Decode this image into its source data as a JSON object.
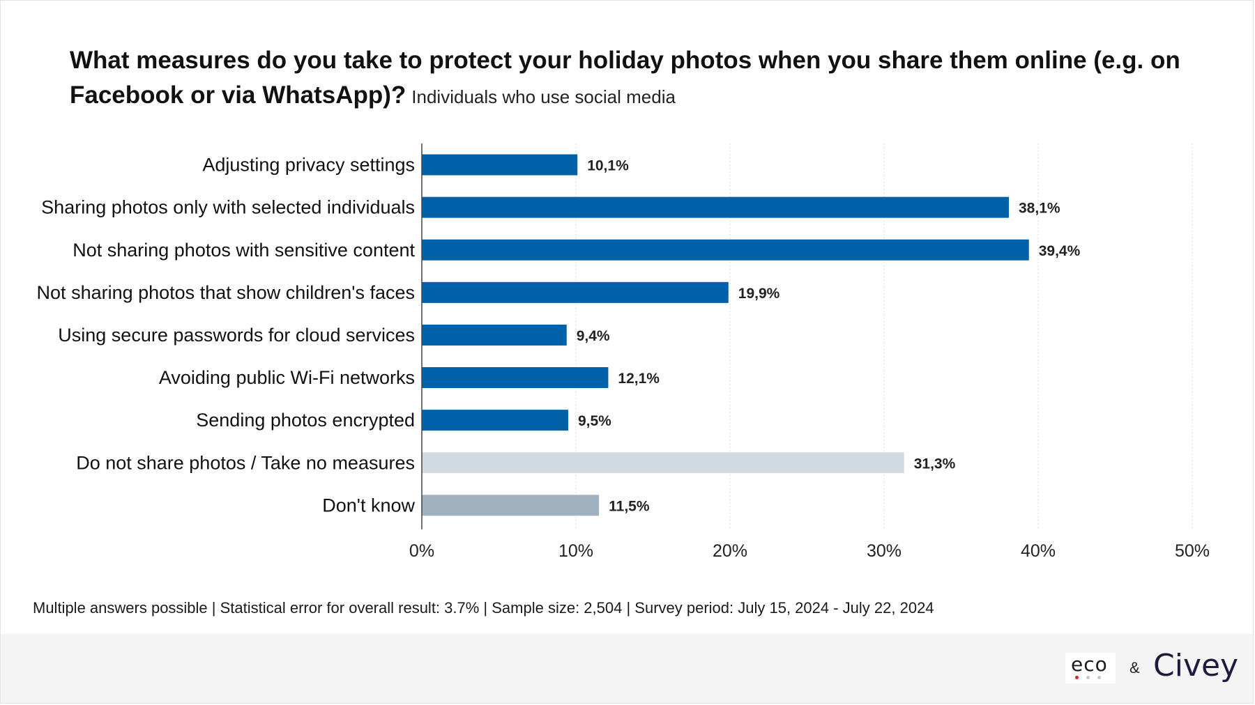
{
  "title": "What measures do you take to protect your holiday photos when you share them online (e.g. on Facebook or via WhatsApp)?",
  "subtitle": "Individuals who use social media",
  "footnote": "Multiple answers possible | Statistical error for overall result: 3.7% | Sample size: 2,504 | Survey period: July 15, 2024 - July 22, 2024",
  "logos": {
    "eco": "eco",
    "ampersand": "&",
    "civey": "Civey"
  },
  "colors": {
    "primary_bar": "#0060a8",
    "no_measures_bar": "#d1d9e1",
    "dont_know_bar": "#a0b1bf",
    "grid": "#d8d8d8",
    "eco_dots": [
      "#d8232a",
      "#c8c8c8",
      "#c8c8c8"
    ]
  },
  "chart_data": {
    "type": "bar",
    "orientation": "horizontal",
    "categories": [
      "Adjusting privacy settings",
      "Sharing photos only with selected individuals",
      "Not sharing photos with sensitive content",
      "Not sharing photos that show children's faces",
      "Using secure passwords for cloud services",
      "Avoiding public Wi-Fi networks",
      "Sending photos encrypted",
      "Do not share photos / Take no measures",
      "Don't know"
    ],
    "values": [
      10.1,
      38.1,
      39.4,
      19.9,
      9.4,
      12.1,
      9.5,
      31.3,
      11.5
    ],
    "data_labels": [
      "10,1%",
      "38,1%",
      "39,4%",
      "19,9%",
      "9,4%",
      "12,1%",
      "9,5%",
      "31,3%",
      "11,5%"
    ],
    "bar_color_keys": [
      "primary_bar",
      "primary_bar",
      "primary_bar",
      "primary_bar",
      "primary_bar",
      "primary_bar",
      "primary_bar",
      "no_measures_bar",
      "dont_know_bar"
    ],
    "xlim": [
      0,
      50
    ],
    "xticks": [
      0,
      10,
      20,
      30,
      40,
      50
    ],
    "xtick_labels": [
      "0%",
      "10%",
      "20%",
      "30%",
      "40%",
      "50%"
    ],
    "grid": true
  }
}
